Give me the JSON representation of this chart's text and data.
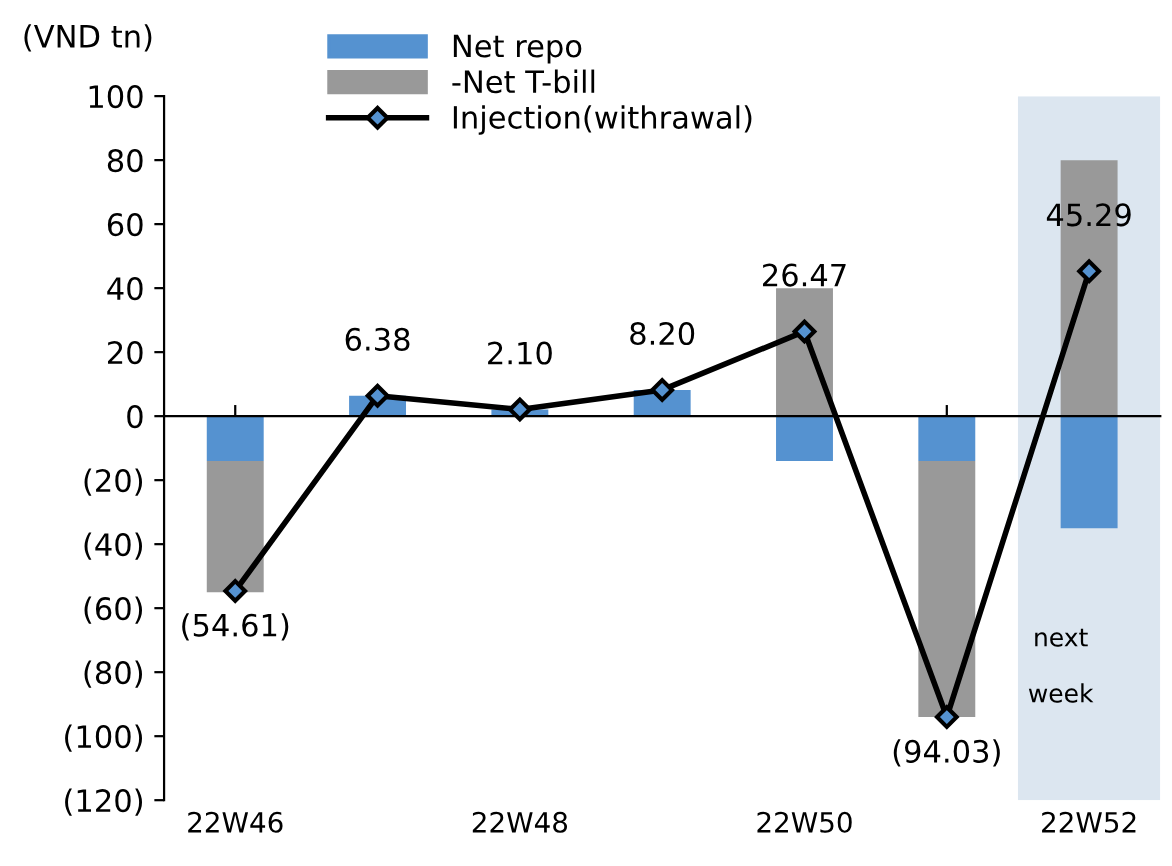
{
  "chart_data": {
    "type": "bar",
    "stacked": true,
    "ylabel": "(VND tn)",
    "categories": [
      "22W46",
      null,
      "22W48",
      null,
      "22W50",
      null,
      "22W52"
    ],
    "series": [
      {
        "name": "Net repo",
        "color": "#5592d0",
        "values": [
          -14,
          6.4,
          2.1,
          8.2,
          -14,
          -14,
          -35
        ]
      },
      {
        "name": "-Net T-bill",
        "color": "#999999",
        "values": [
          -41,
          0,
          0,
          0,
          40,
          -80,
          80
        ]
      },
      {
        "name": "Injection(withrawal)",
        "type": "line",
        "color": "#000000",
        "marker": "diamond",
        "line_style": "solid",
        "values": [
          -54.61,
          6.38,
          2.1,
          8.2,
          26.47,
          -94.03,
          45.29
        ],
        "value_labels": [
          "(54.61)",
          "6.38",
          "2.10",
          "8.20",
          "26.47",
          "(94.03)",
          "45.29"
        ]
      }
    ],
    "bands": [
      {
        "axis": "x",
        "from": "22W52",
        "to": "22W52",
        "label": "next\n\nweek",
        "color": "#dce6f0"
      }
    ],
    "ylim": [
      -120,
      100
    ],
    "yticks": [
      {
        "value": -120,
        "label": "(120)"
      },
      {
        "value": -100,
        "label": "(100)"
      },
      {
        "value": -80,
        "label": "(80)"
      },
      {
        "value": -60,
        "label": "(60)"
      },
      {
        "value": -40,
        "label": "(40)"
      },
      {
        "value": -20,
        "label": "(20)"
      },
      0,
      20,
      40,
      60,
      80,
      100
    ],
    "legend": "top"
  }
}
